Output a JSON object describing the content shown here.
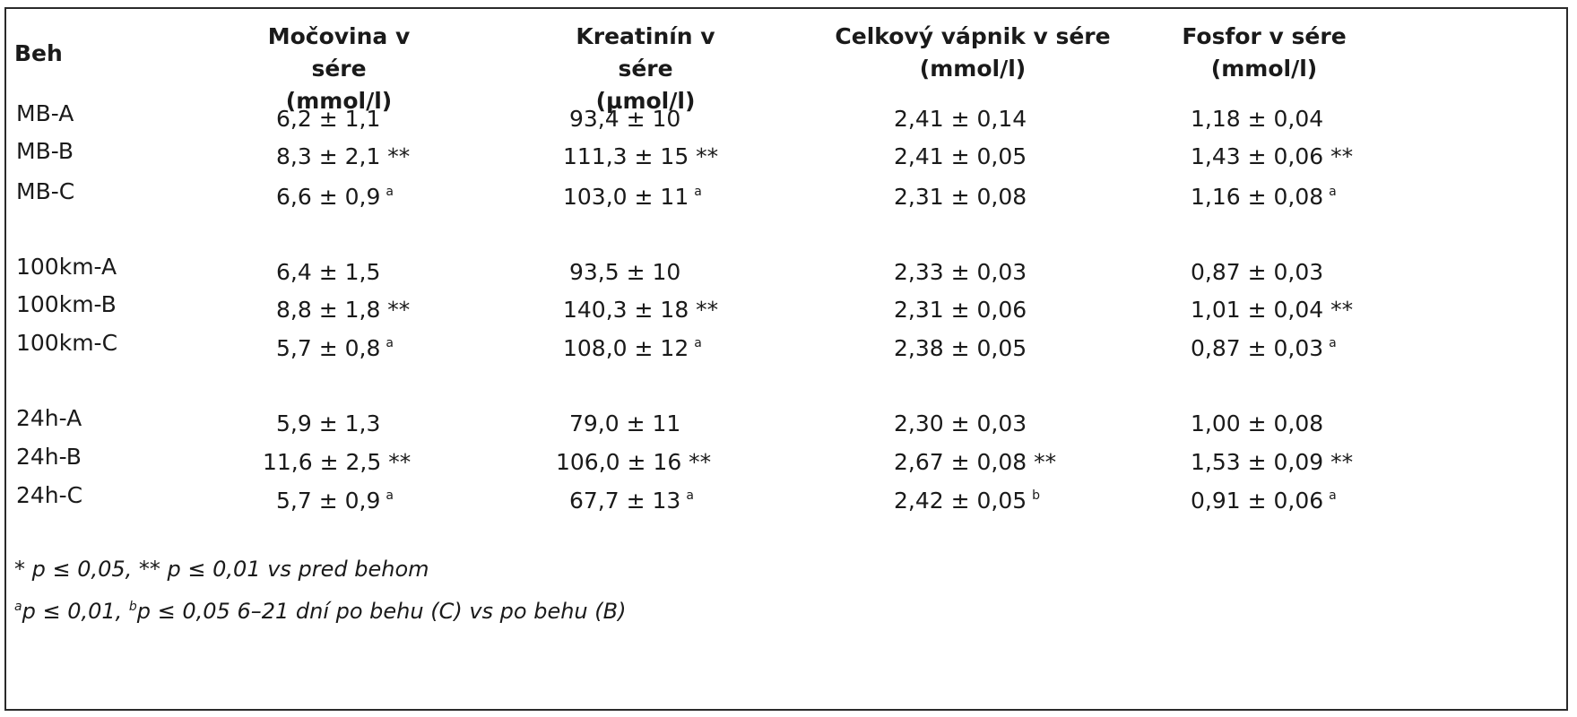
{
  "table": {
    "header": {
      "col0": "Beh",
      "col1_line1": "Močovina v sére",
      "col1_line2": "(mmol/l)",
      "col2_line1": "Kreatinín v sére",
      "col2_line2": "(µmol/l)",
      "col3_line1": "Celkový vápnik  v sére",
      "col3_line2": "(mmol/l)",
      "col4_line1": "Fosfor v sére",
      "col4_line2": "(mmol/l)"
    },
    "rows": [
      {
        "beh": "MB-A",
        "mocovina": "6,2 ± 1,1",
        "mocovina_sup": "",
        "kreatinin": "93,4 ± 10",
        "kreatinin_sup": "",
        "vapnik": "2,41 ± 0,14",
        "vapnik_sup": "",
        "fosfor": "1,18 ± 0,04",
        "fosfor_sup": ""
      },
      {
        "beh": "MB-B",
        "mocovina": "8,3 ± 2,1 **",
        "mocovina_sup": "",
        "kreatinin": "111,3 ± 15 **",
        "kreatinin_sup": "",
        "vapnik": "2,41 ± 0,05",
        "vapnik_sup": "",
        "fosfor": "1,43 ± 0,06 **",
        "fosfor_sup": ""
      },
      {
        "beh": "MB-C",
        "mocovina": "6,6 ± 0,9",
        "mocovina_sup": "a",
        "kreatinin": "103,0 ± 11",
        "kreatinin_sup": "a",
        "vapnik": "2,31 ± 0,08",
        "vapnik_sup": "",
        "fosfor": "1,16 ± 0,08",
        "fosfor_sup": "a"
      },
      {
        "beh": "100km-A",
        "mocovina": "6,4 ± 1,5",
        "mocovina_sup": "",
        "kreatinin": "93,5 ± 10",
        "kreatinin_sup": "",
        "vapnik": "2,33 ± 0,03",
        "vapnik_sup": "",
        "fosfor": "0,87 ± 0,03",
        "fosfor_sup": ""
      },
      {
        "beh": "100km-B",
        "mocovina": "8,8 ± 1,8 **",
        "mocovina_sup": "",
        "kreatinin": "140,3 ± 18 **",
        "kreatinin_sup": "",
        "vapnik": "2,31 ± 0,06",
        "vapnik_sup": "",
        "fosfor": "1,01 ± 0,04 **",
        "fosfor_sup": ""
      },
      {
        "beh": "100km-C",
        "mocovina": "5,7 ± 0,8",
        "mocovina_sup": "a",
        "kreatinin": "108,0 ± 12",
        "kreatinin_sup": "a",
        "vapnik": "2,38 ± 0,05",
        "vapnik_sup": "",
        "fosfor": "0,87 ± 0,03",
        "fosfor_sup": "a"
      },
      {
        "beh": "24h-A",
        "mocovina": "5,9 ± 1,3",
        "mocovina_sup": "",
        "kreatinin": "79,0 ± 11",
        "kreatinin_sup": "",
        "vapnik": "2,30 ± 0,03",
        "vapnik_sup": "",
        "fosfor": "1,00 ± 0,08",
        "fosfor_sup": ""
      },
      {
        "beh": "24h-B",
        "mocovina": "11,6 ± 2,5 **",
        "mocovina_sup": "",
        "kreatinin": "106,0 ± 16 **",
        "kreatinin_sup": "",
        "vapnik": "2,67 ± 0,08 **",
        "vapnik_sup": "",
        "fosfor": "1,53 ± 0,09 **",
        "fosfor_sup": ""
      },
      {
        "beh": "24h-C",
        "mocovina": "5,7 ± 0,9",
        "mocovina_sup": "a",
        "kreatinin": "67,7 ± 13",
        "kreatinin_sup": "a",
        "vapnik": "2,42 ± 0,05",
        "vapnik_sup": "b",
        "fosfor": "0,91 ± 0,06",
        "fosfor_sup": "a"
      }
    ]
  },
  "footnotes": {
    "line1": "* p ≤ 0,05, ** p ≤ 0,01 vs pred behom",
    "line2_sup_a": "a",
    "line2_part1": "p ≤ 0,01, ",
    "line2_sup_b": "b",
    "line2_part2": "p ≤ 0,05 6–21 dní po behu (C) vs po behu (B)"
  }
}
